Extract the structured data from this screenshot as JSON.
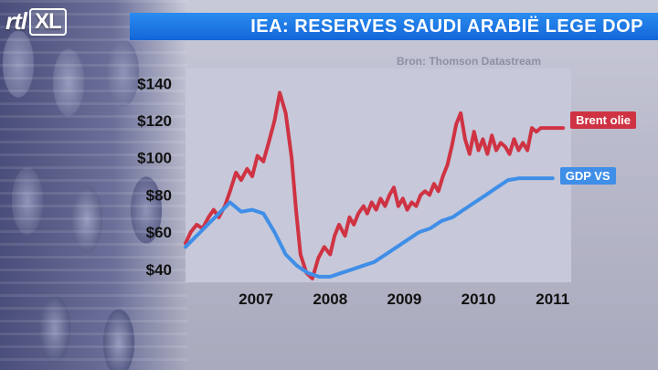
{
  "branding": {
    "logo_rtl": "rtl",
    "logo_xl": "XL"
  },
  "title": "IEA: RESERVES SAUDI ARABIË LEGE DOP",
  "source": "Bron: Thomson Datastream",
  "colors": {
    "brent": "#cf3343",
    "gdp": "#3f8ee8",
    "title_bar": "#1a72e0"
  },
  "chart_data": {
    "type": "line",
    "title": "IEA: RESERVES SAUDI ARABIË LEGE DOP",
    "xlabel": "",
    "ylabel": "",
    "x_ticks": [
      "2007",
      "2008",
      "2009",
      "2010",
      "2011"
    ],
    "y_ticks": [
      "$40",
      "$60",
      "$80",
      "$100",
      "$120",
      "$140"
    ],
    "xlim": [
      2006.55,
      2011.75
    ],
    "ylim": [
      33,
      148
    ],
    "grid": false,
    "legend": "inline labels at right end of series",
    "series": [
      {
        "name": "Brent olie",
        "color": "#cf3343",
        "x": [
          2006.55,
          2006.62,
          2006.7,
          2006.78,
          2006.86,
          2006.93,
          2007.0,
          2007.08,
          2007.15,
          2007.23,
          2007.3,
          2007.38,
          2007.45,
          2007.52,
          2007.6,
          2007.67,
          2007.75,
          2007.82,
          2007.9,
          2007.98,
          2008.04,
          2008.1,
          2008.18,
          2008.26,
          2008.34,
          2008.42,
          2008.5,
          2008.56,
          2008.62,
          2008.7,
          2008.76,
          2008.82,
          2008.88,
          2008.95,
          2009.0,
          2009.06,
          2009.12,
          2009.18,
          2009.24,
          2009.3,
          2009.36,
          2009.42,
          2009.48,
          2009.54,
          2009.6,
          2009.66,
          2009.72,
          2009.78,
          2009.84,
          2009.9,
          2009.96,
          2010.02,
          2010.08,
          2010.14,
          2010.2,
          2010.26,
          2010.32,
          2010.38,
          2010.44,
          2010.5,
          2010.56,
          2010.62,
          2010.68,
          2010.74,
          2010.8,
          2010.86,
          2010.92,
          2010.98,
          2011.04,
          2011.1,
          2011.16,
          2011.22,
          2011.28,
          2011.34,
          2011.4,
          2011.46,
          2011.52,
          2011.58,
          2011.64
        ],
        "values": [
          54,
          60,
          64,
          62,
          68,
          72,
          68,
          74,
          82,
          92,
          88,
          94,
          90,
          101,
          98,
          108,
          120,
          135,
          124,
          100,
          72,
          48,
          38,
          35,
          46,
          52,
          48,
          58,
          64,
          58,
          68,
          64,
          70,
          74,
          70,
          76,
          72,
          78,
          74,
          80,
          84,
          74,
          78,
          72,
          76,
          74,
          80,
          82,
          80,
          86,
          82,
          90,
          96,
          106,
          118,
          124,
          110,
          102,
          114,
          104,
          110,
          102,
          112,
          104,
          108,
          106,
          102,
          110,
          104,
          108,
          104,
          116,
          114,
          116,
          116,
          116,
          116,
          116,
          116
        ]
      },
      {
        "name": "GDP VS",
        "color": "#3f8ee8",
        "x": [
          2006.55,
          2006.7,
          2006.85,
          2007.0,
          2007.15,
          2007.3,
          2007.45,
          2007.6,
          2007.75,
          2007.9,
          2008.05,
          2008.2,
          2008.35,
          2008.5,
          2008.65,
          2008.8,
          2008.95,
          2009.1,
          2009.25,
          2009.4,
          2009.55,
          2009.7,
          2009.85,
          2010.0,
          2010.15,
          2010.3,
          2010.45,
          2010.6,
          2010.75,
          2010.9,
          2011.05,
          2011.2,
          2011.35,
          2011.5
        ],
        "values": [
          52,
          58,
          64,
          70,
          76,
          71,
          72,
          70,
          60,
          48,
          42,
          38,
          36,
          36,
          38,
          40,
          42,
          44,
          48,
          52,
          56,
          60,
          62,
          66,
          68,
          72,
          76,
          80,
          84,
          88,
          89,
          89,
          89,
          89
        ]
      }
    ],
    "end_labels": [
      "Brent olie",
      "GDP VS"
    ]
  }
}
